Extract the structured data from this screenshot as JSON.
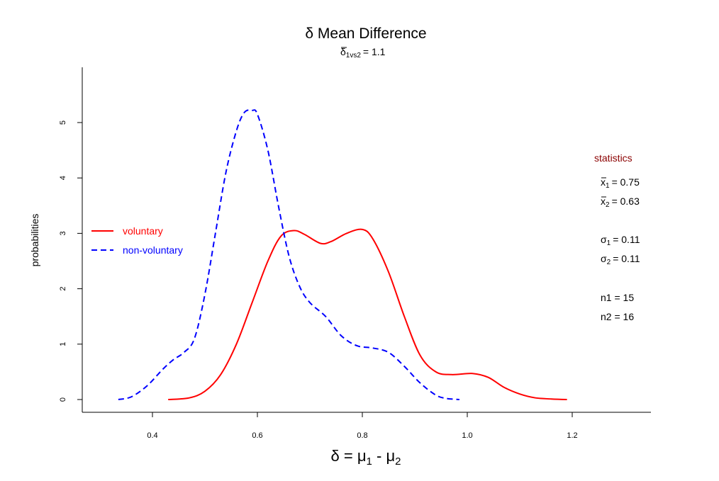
{
  "chart_data": {
    "type": "line",
    "title": "δ Mean Difference",
    "subtitle": {
      "symbol": "δ",
      "subscript": "1vs2",
      "value": "= 1.1"
    },
    "xlabel": {
      "symbol": "δ",
      "eq": " = ",
      "mu": "μ",
      "sub1": "1",
      "minus": " - ",
      "sub2": "2"
    },
    "ylabel": "probabilities",
    "xlim": [
      0.27,
      1.34
    ],
    "ylim": [
      0,
      5.4
    ],
    "x_ticks": [
      0.4,
      0.6,
      0.8,
      1.0,
      1.2
    ],
    "x_tick_labels": [
      "0.4",
      "0.6",
      "0.8",
      "1.0",
      "1.2"
    ],
    "y_ticks": [
      0,
      1,
      2,
      3,
      4,
      5
    ],
    "y_tick_labels": [
      "0",
      "1",
      "2",
      "3",
      "4",
      "5"
    ],
    "legend_position": "left-middle",
    "series": [
      {
        "name": "voluntary",
        "color": "#ff0000",
        "dash": "solid",
        "x": [
          0.43,
          0.47,
          0.5,
          0.53,
          0.56,
          0.59,
          0.62,
          0.645,
          0.67,
          0.69,
          0.72,
          0.74,
          0.77,
          0.8,
          0.82,
          0.85,
          0.88,
          0.91,
          0.94,
          0.97,
          1.01,
          1.04,
          1.07,
          1.1,
          1.13,
          1.16,
          1.19
        ],
        "y": [
          0.0,
          0.03,
          0.15,
          0.45,
          1.0,
          1.75,
          2.5,
          2.95,
          3.05,
          2.98,
          2.82,
          2.85,
          3.0,
          3.07,
          2.9,
          2.3,
          1.5,
          0.8,
          0.5,
          0.45,
          0.47,
          0.4,
          0.22,
          0.1,
          0.03,
          0.01,
          0.0
        ]
      },
      {
        "name": "non-voluntary",
        "color": "#0000ff",
        "dash": "dashed",
        "x": [
          0.335,
          0.36,
          0.39,
          0.42,
          0.44,
          0.46,
          0.48,
          0.5,
          0.52,
          0.54,
          0.56,
          0.575,
          0.59,
          0.6,
          0.62,
          0.64,
          0.66,
          0.68,
          0.7,
          0.73,
          0.76,
          0.79,
          0.82,
          0.85,
          0.88,
          0.91,
          0.94,
          0.96,
          0.985
        ],
        "y": [
          0.0,
          0.05,
          0.25,
          0.55,
          0.72,
          0.85,
          1.1,
          1.9,
          3.0,
          4.1,
          4.85,
          5.18,
          5.22,
          5.15,
          4.5,
          3.5,
          2.6,
          2.05,
          1.75,
          1.5,
          1.15,
          0.97,
          0.93,
          0.85,
          0.6,
          0.3,
          0.08,
          0.02,
          0.0
        ]
      }
    ],
    "statistics": {
      "heading": "statistics",
      "heading_color": "#8b0000",
      "mean_symbol": "x",
      "x1_sub": "1",
      "x1_val": "= 0.75",
      "x2_sub": "2",
      "x2_val": "= 0.63",
      "sigma_symbol": "σ",
      "s1_sub": "1",
      "s1_val": "= 0.11",
      "s2_sub": "2",
      "s2_val": "= 0.11",
      "n1": "n1 = 15",
      "n2": "n2 = 16"
    }
  }
}
